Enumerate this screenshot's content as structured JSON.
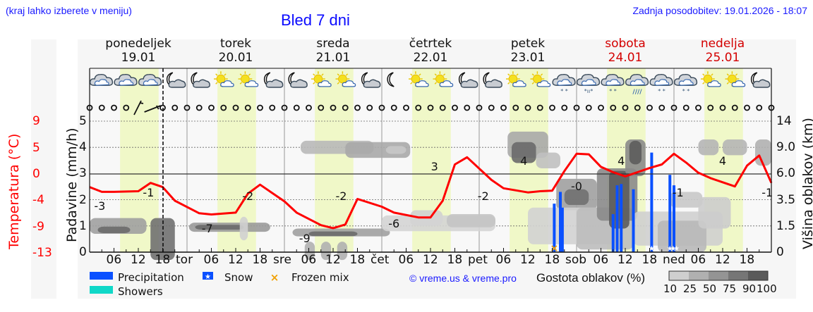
{
  "header": {
    "location_hint": "(kraj lahko izberete v meniju)",
    "title": "Bled 7 dni",
    "last_update": "Zadnja posodobitev: 19.01.2026 - 18:07"
  },
  "days": [
    {
      "name": "ponedeljek",
      "date": "19.01",
      "weekend": false
    },
    {
      "name": "torek",
      "date": "20.01",
      "weekend": false
    },
    {
      "name": "sreda",
      "date": "21.01",
      "weekend": false
    },
    {
      "name": "četrtek",
      "date": "22.01",
      "weekend": false
    },
    {
      "name": "petek",
      "date": "23.01",
      "weekend": false
    },
    {
      "name": "sobota",
      "date": "24.01",
      "weekend": true
    },
    {
      "name": "nedelja",
      "date": "25.01",
      "weekend": true
    }
  ],
  "axes": {
    "left_temp_label": "Temperatura (°C)",
    "left_precip_label": "Padavine (mm/h)",
    "right_label": "Višina oblakov (km)",
    "temp_ticks": [
      "9",
      "5",
      "0",
      "-4",
      "-9",
      "-13"
    ],
    "precip_ticks": [
      "5",
      "4",
      "3",
      "2",
      "1",
      "0"
    ],
    "cloud_height_ticks": [
      "14",
      "9.0",
      "6.0",
      "3.5",
      "1.5",
      "0"
    ],
    "x_ticks": [
      "06",
      "12",
      "18",
      "tor",
      "06",
      "12",
      "18",
      "sre",
      "06",
      "12",
      "18",
      "čet",
      "06",
      "12",
      "18",
      "pet",
      "06",
      "12",
      "18",
      "sob",
      "06",
      "12",
      "18",
      "ned",
      "06",
      "12",
      "18"
    ]
  },
  "legend": {
    "precipitation": "Precipitation",
    "snow": "Snow",
    "frozen_mix": "Frozen mix",
    "showers": "Showers",
    "copyright": "© vreme.us & vreme.pro",
    "cloud_density_title": "Gostota oblakov (%)",
    "cloud_density_ticks": [
      "10",
      "25",
      "50",
      "75",
      "90",
      "100"
    ]
  },
  "colors": {
    "precipitation": "#0a50ff",
    "showers": "#10d8c8",
    "frozen_mix": "#f0a000",
    "temperature": "#ff0000",
    "daylight": "#f0f8c8",
    "weekend_text": "#d40000",
    "link_blue": "#1a1aff"
  },
  "chart_data": {
    "type": "line",
    "title": "Bled 7 dni",
    "xlabel": "",
    "ylabel": "Padavine (mm/h)",
    "ylim": [
      0,
      5
    ],
    "grid": true,
    "x_range_hours": [
      0,
      168
    ],
    "series": [
      {
        "name": "Temperatura (°C)",
        "color": "#ff0000",
        "hours": [
          0,
          3,
          6,
          12,
          15,
          18,
          21,
          27,
          30,
          36,
          39,
          42,
          48,
          51,
          57,
          60,
          63,
          66,
          72,
          75,
          81,
          84,
          87,
          90,
          93,
          99,
          102,
          108,
          111,
          114,
          117,
          120,
          123,
          126,
          129,
          132,
          135,
          138,
          141,
          144,
          147,
          150,
          153,
          156,
          159,
          162,
          165,
          168
        ],
        "values": [
          -2.2,
          -3.0,
          -3.0,
          -2.9,
          -1.5,
          -2.2,
          -4.5,
          -6.6,
          -6.8,
          -6.5,
          -3.3,
          -1.8,
          -4.6,
          -6.5,
          -8.6,
          -9.1,
          -8.5,
          -4.2,
          -5.5,
          -6.5,
          -7.3,
          -7.3,
          -4.5,
          1.6,
          2.8,
          -1.0,
          -2.4,
          -3.1,
          -2.9,
          -2.8,
          0.5,
          3.4,
          3.3,
          1.2,
          0.3,
          -0.4,
          0.3,
          1.0,
          1.6,
          3.4,
          1.9,
          0.2,
          -0.7,
          -1.4,
          -2.1,
          1.4,
          3.1,
          -1.5
        ]
      },
      {
        "name": "Precipitation (mm/h)",
        "color": "#0a50ff",
        "hours": [
          114.5,
          116.0,
          116.5,
          129.0,
          130.0,
          131.0,
          134.0,
          138.5,
          143.0,
          144.0
        ],
        "values": [
          1.85,
          2.3,
          1.7,
          1.45,
          2.55,
          2.6,
          2.4,
          3.8,
          2.95,
          2.55
        ]
      }
    ],
    "temperature_labels": [
      {
        "hour": 2.5,
        "value": "-3"
      },
      {
        "hour": 14.5,
        "value": "-1"
      },
      {
        "hour": 29,
        "value": "-7"
      },
      {
        "hour": 39,
        "value": "-2"
      },
      {
        "hour": 53,
        "value": "-9"
      },
      {
        "hour": 62,
        "value": "-2"
      },
      {
        "hour": 75,
        "value": "-6"
      },
      {
        "hour": 85,
        "value": "3"
      },
      {
        "hour": 97,
        "value": "-2"
      },
      {
        "hour": 107,
        "value": "4"
      },
      {
        "hour": 120,
        "value": "-0"
      },
      {
        "hour": 131,
        "value": "4"
      },
      {
        "hour": 145,
        "value": "-1"
      },
      {
        "hour": 156,
        "value": "4"
      },
      {
        "hour": 167,
        "value": "-1"
      }
    ],
    "temperature_axis": {
      "ticks": [
        9,
        5,
        0,
        -4,
        -9,
        -13
      ]
    },
    "cloud_height_axis": {
      "ticks": [
        14,
        9.0,
        6.0,
        3.5,
        1.5,
        0
      ],
      "unit": "km"
    },
    "snow_markers_hours": [
      138.5,
      143.0,
      143.8,
      144.6
    ],
    "frozen_mix_markers_hours": [
      114.5
    ]
  },
  "weather_icons": [
    "cloudy",
    "cloudy",
    "cloudy",
    "night-cloudy",
    "night-cloudy",
    "sun-cloud",
    "sun-cloud",
    "night-cloudy",
    "night-cloudy",
    "sun-cloud",
    "sun-cloud",
    "night-cloudy",
    "night-clear",
    "sun-cloud",
    "sun-cloud",
    "night-cloudy",
    "night-cloudy",
    "sun-cloud",
    "sun-cloud",
    "snow-cloud",
    "sleet-cloud",
    "snow-cloud",
    "rain-cloud",
    "snow-cloud",
    "snow-cloud",
    "sun-cloud",
    "sun-cloud",
    "night-cloudy"
  ]
}
